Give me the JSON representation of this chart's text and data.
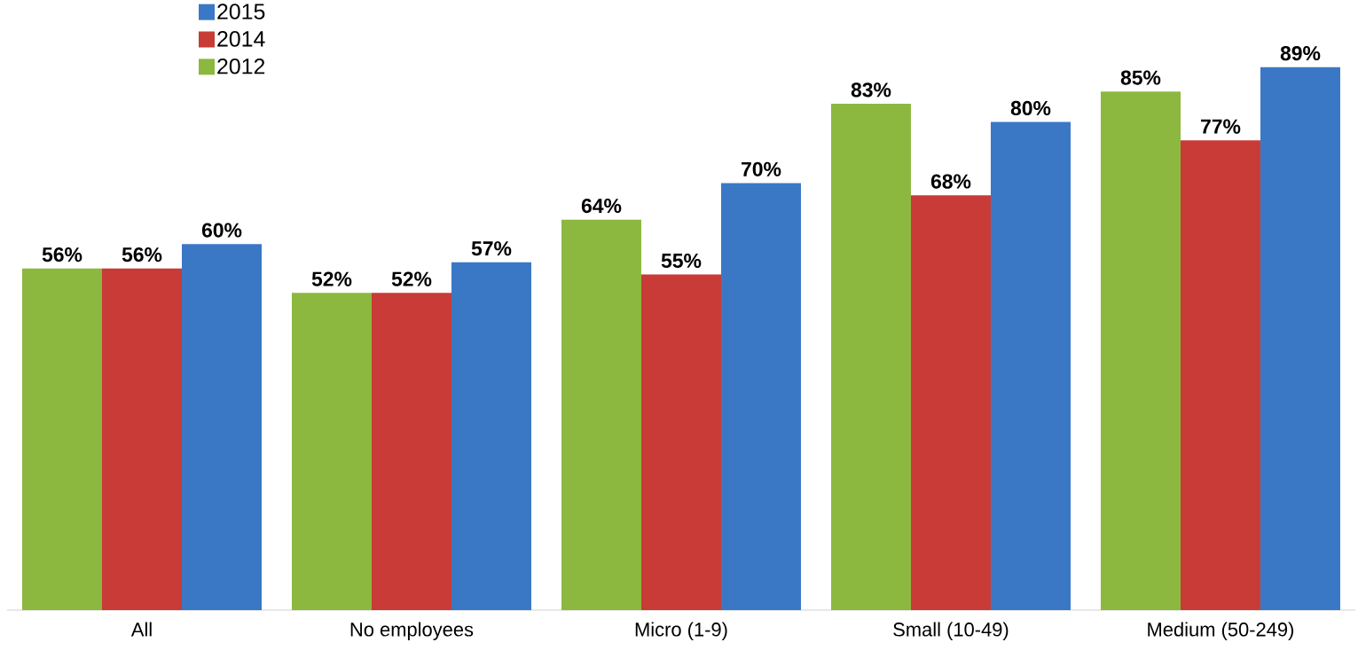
{
  "chart_data": {
    "type": "bar",
    "categories": [
      "All",
      "No employees",
      "Micro (1-9)",
      "Small (10-49)",
      "Medium (50-249)"
    ],
    "series": [
      {
        "name": "2012",
        "color": "#8cb83f",
        "values": [
          56,
          52,
          64,
          83,
          85
        ],
        "value_labels": [
          "56%",
          "52%",
          "64%",
          "83%",
          "85%"
        ]
      },
      {
        "name": "2014",
        "color": "#c83b36",
        "values": [
          56,
          52,
          55,
          68,
          77
        ],
        "value_labels": [
          "56%",
          "52%",
          "55%",
          "68%",
          "77%"
        ]
      },
      {
        "name": "2015",
        "color": "#3a78c6",
        "values": [
          60,
          57,
          70,
          80,
          89
        ],
        "value_labels": [
          "60%",
          "57%",
          "70%",
          "80%",
          "89%"
        ]
      }
    ],
    "ylim": [
      0,
      100
    ],
    "legend": "top left",
    "tick_labels": "x",
    "grid": false
  }
}
